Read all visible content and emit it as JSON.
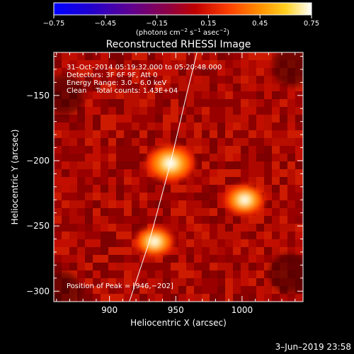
{
  "chart_data": {
    "type": "heatmap",
    "title": "Reconstructed RHESSI Image",
    "xlabel": "Heliocentric X (arcsec)",
    "ylabel": "Heliocentric Y (arcsec)",
    "xlim": [
      858,
      1046
    ],
    "ylim": [
      -308,
      -117
    ],
    "x_ticks": [
      900,
      950,
      1000
    ],
    "y_ticks": [
      -150,
      -200,
      -250,
      -300
    ],
    "colorbar": {
      "range": [
        -0.75,
        0.75
      ],
      "ticks": [
        -0.75,
        -0.45,
        -0.15,
        0.15,
        0.45,
        0.75
      ],
      "tick_labels": [
        "−0.75",
        "−0.45",
        "−0.15",
        "0.15",
        "0.45",
        "0.75"
      ],
      "units_pre": "(photons cm",
      "units_exp1": "−2",
      "units_mid": " s",
      "units_exp2": "−1",
      "units_mid2": " asec",
      "units_exp3": "−2",
      "units_post": ")",
      "colors": [
        "#0000ff",
        "#3000c0",
        "#700090",
        "#b00020",
        "#ff3000",
        "#ff9000",
        "#ffff40",
        "#ffffff"
      ]
    },
    "annotations": {
      "time": "31–Oct–2014 05:19:32.000 to 05:20:48.000",
      "detectors": "Detectors: 3F 6F 9F, Att 0",
      "energy": "Energy Range: 3.0 – 6.0 keV",
      "clean": "Clean    Total counts: 1.43E+04",
      "peak": "Position of Peak = [946,−202]"
    },
    "sources": [
      {
        "x": 946,
        "y": -202,
        "peak": 0.75
      },
      {
        "x": 1002,
        "y": -230,
        "peak": 0.62
      },
      {
        "x": 934,
        "y": -262,
        "peak": 0.6
      }
    ],
    "limb_curve": [
      [
        915,
        -308
      ],
      [
        930,
        -262
      ],
      [
        946,
        -202
      ],
      [
        958,
        -150
      ],
      [
        966,
        -117
      ]
    ]
  },
  "footer": {
    "date": "3–Jun–2019 23:58"
  }
}
